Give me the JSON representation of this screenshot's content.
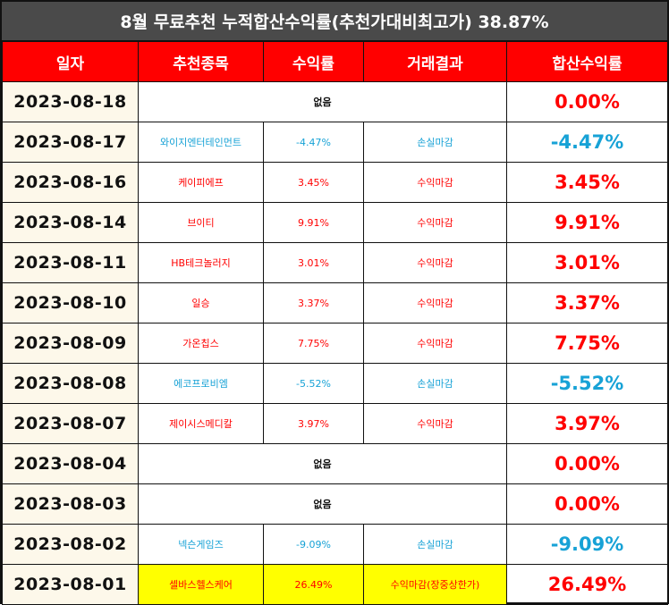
{
  "title": "8월 무료추천 누적합산수익률(추천가대비최고가) 38.87%",
  "headers": [
    "일자",
    "추천종목",
    "수익률",
    "거래결과",
    "합산수익률"
  ],
  "rows": [
    {
      "date": "2023-08-18",
      "stock": "",
      "rate": "",
      "result": "",
      "total": "0.00%",
      "none": "없음",
      "color": "red",
      "highlight": false
    },
    {
      "date": "2023-08-17",
      "stock": "와이지엔터테인먼트",
      "rate": "-4.47%",
      "result": "손실마감",
      "total": "-4.47%",
      "none": "",
      "color": "blue",
      "highlight": false
    },
    {
      "date": "2023-08-16",
      "stock": "케이피에프",
      "rate": "3.45%",
      "result": "수익마감",
      "total": "3.45%",
      "none": "",
      "color": "red",
      "highlight": false
    },
    {
      "date": "2023-08-14",
      "stock": "브이티",
      "rate": "9.91%",
      "result": "수익마감",
      "total": "9.91%",
      "none": "",
      "color": "red",
      "highlight": false
    },
    {
      "date": "2023-08-11",
      "stock": "HB테크놀러지",
      "rate": "3.01%",
      "result": "수익마감",
      "total": "3.01%",
      "none": "",
      "color": "red",
      "highlight": false
    },
    {
      "date": "2023-08-10",
      "stock": "일승",
      "rate": "3.37%",
      "result": "수익마감",
      "total": "3.37%",
      "none": "",
      "color": "red",
      "highlight": false
    },
    {
      "date": "2023-08-09",
      "stock": "가온칩스",
      "rate": "7.75%",
      "result": "수익마감",
      "total": "7.75%",
      "none": "",
      "color": "red",
      "highlight": false
    },
    {
      "date": "2023-08-08",
      "stock": "에코프로비엠",
      "rate": "-5.52%",
      "result": "손실마감",
      "total": "-5.52%",
      "none": "",
      "color": "blue",
      "highlight": false
    },
    {
      "date": "2023-08-07",
      "stock": "제이시스메디칼",
      "rate": "3.97%",
      "result": "수익마감",
      "total": "3.97%",
      "none": "",
      "color": "red",
      "highlight": false
    },
    {
      "date": "2023-08-04",
      "stock": "",
      "rate": "",
      "result": "",
      "total": "0.00%",
      "none": "없음",
      "color": "red",
      "highlight": false
    },
    {
      "date": "2023-08-03",
      "stock": "",
      "rate": "",
      "result": "",
      "total": "0.00%",
      "none": "없음",
      "color": "red",
      "highlight": false
    },
    {
      "date": "2023-08-02",
      "stock": "넥슨게임즈",
      "rate": "-9.09%",
      "result": "손실마감",
      "total": "-9.09%",
      "none": "",
      "color": "blue",
      "highlight": false
    },
    {
      "date": "2023-08-01",
      "stock": "셀바스헬스케어",
      "rate": "26.49%",
      "result": "수익마감(장중상한가)",
      "total": "26.49%",
      "none": "",
      "color": "red",
      "highlight": true
    }
  ]
}
